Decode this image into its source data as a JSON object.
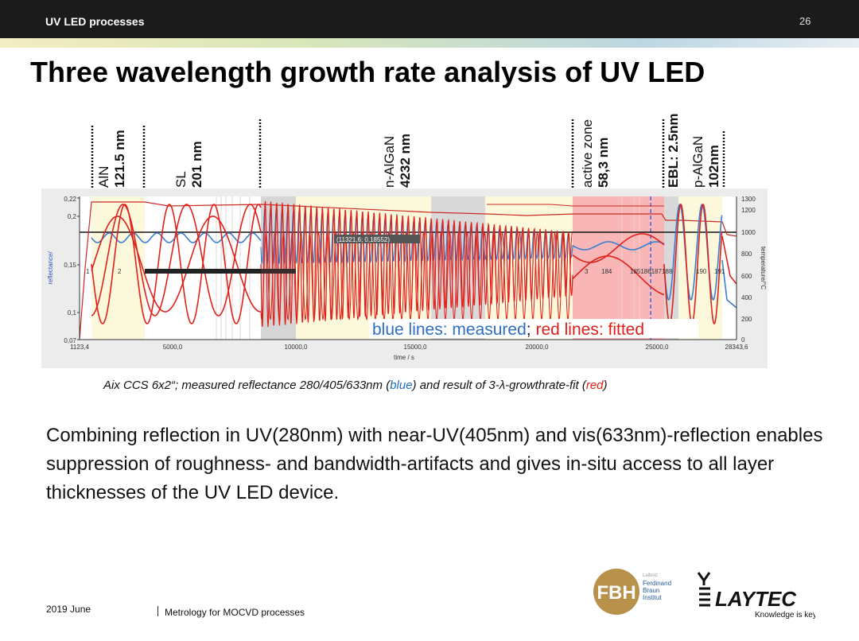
{
  "header": {
    "title": "UV LED processes",
    "page_number": "26"
  },
  "slide": {
    "title": "Three wavelength growth rate analysis of UV LED"
  },
  "layers": [
    {
      "name": "AlN",
      "thickness": "121.5 nm"
    },
    {
      "name": "SL",
      "thickness": "201 nm"
    },
    {
      "name": "n-AlGaN",
      "thickness": "4232 nm"
    },
    {
      "name": "active zone",
      "thickness": "58,3 nm"
    },
    {
      "name": "EBL: 2.5nm",
      "thickness": ""
    },
    {
      "name": "p-AlGaN",
      "thickness": "102nm"
    }
  ],
  "chart_data": {
    "type": "line",
    "xlabel": "time / s",
    "ylabel": "reflectance/",
    "y2label": "temperature/°C",
    "xlim": [
      1123.4,
      28343.6
    ],
    "ylim": [
      0.07,
      0.22
    ],
    "y2lim": [
      0,
      1300
    ],
    "xticks": [
      "1123,4",
      "5000,0",
      "10000,0",
      "15000,0",
      "20000,0",
      "25000,0",
      "28343,6"
    ],
    "yticks": [
      "0,22",
      "0,2",
      "0,15",
      "0,1",
      "0,07"
    ],
    "y2ticks": [
      "1300",
      "1200",
      "1000",
      "800",
      "600",
      "400",
      "200",
      "0"
    ],
    "region_labels": [
      "1",
      "2",
      "3",
      "184",
      "185186187188",
      "190",
      "191"
    ],
    "cursor_readout": "(11321,6; 0,18552)",
    "annotation": {
      "prefix": "blue lines: measured",
      "sep": "; ",
      "suffix": "red lines: fitted"
    },
    "series": [
      {
        "name": "measured",
        "color": "#3a7fd0"
      },
      {
        "name": "fitted",
        "color": "#e0201a"
      }
    ]
  },
  "caption": {
    "prefix": "Aix CCS 6x2“; measured reflectance 280/405/633nm (",
    "blue": "blue",
    "mid": ") and result of 3-λ-growthrate-fit (",
    "red": "red",
    "suffix": ")"
  },
  "body": {
    "text": "Combining reflection in UV(280nm) with near-UV(405nm) and vis(633nm)-reflection enables suppression of roughness- and bandwidth-artifacts and gives in-situ access to all layer thicknesses of the UV LED device."
  },
  "footer": {
    "date": "2019 June",
    "text": "Metrology for MOCVD processes"
  },
  "logos": {
    "fbh_mark": "FBH",
    "fbh_line1": "Leibniz",
    "fbh_line2": "Ferdinand",
    "fbh_line3": "Braun",
    "fbh_line4": "Institut",
    "laytec_name": "LAYTEC",
    "laytec_tagline": "Knowledge is key"
  },
  "colors": {
    "measured": "#3a7fd0",
    "fitted": "#e0201a",
    "topbar": "#1b1b1b"
  }
}
